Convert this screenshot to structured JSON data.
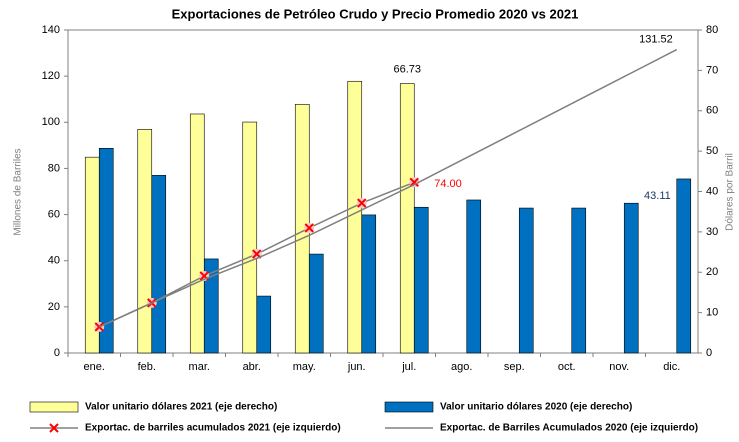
{
  "chart_data": {
    "type": "bar",
    "title": "Exportaciones de Petróleo Crudo y Precio Promedio 2020 vs 2021",
    "y_label": "Millones de Barriles",
    "y2_label": "Dólares por Barril",
    "categories": [
      "ene.",
      "feb.",
      "mar.",
      "abr.",
      "may.",
      "jun.",
      "jul.",
      "ago.",
      "sep.",
      "oct.",
      "nov.",
      "dic."
    ],
    "ylim": [
      0,
      140
    ],
    "yticks": [
      0,
      20,
      40,
      60,
      80,
      100,
      120,
      140
    ],
    "y2lim": [
      0,
      80
    ],
    "y2ticks": [
      0,
      10,
      20,
      30,
      40,
      50,
      60,
      70,
      80
    ],
    "legend": "bottom",
    "series": [
      {
        "name": "Valor unitario dólares 2021 (eje derecho)",
        "type": "bar",
        "axis": "y2",
        "color": "#ffff99",
        "values": [
          48.5,
          55.4,
          59.2,
          57.2,
          61.6,
          67.3,
          66.73,
          null,
          null,
          null,
          null,
          null
        ],
        "value_labels": [
          null,
          null,
          null,
          null,
          null,
          null,
          "66.73",
          null,
          null,
          null,
          null,
          null
        ]
      },
      {
        "name": "Valor unitario dólares 2020 (eje derecho)",
        "type": "bar",
        "axis": "y2",
        "color": "#0070c0",
        "values": [
          50.7,
          44.0,
          23.3,
          14.1,
          24.5,
          34.2,
          36.1,
          37.9,
          35.9,
          35.9,
          37.1,
          43.11
        ],
        "value_labels": [
          null,
          null,
          null,
          null,
          null,
          null,
          null,
          null,
          null,
          null,
          null,
          "43.11"
        ]
      },
      {
        "name": "Exportac. de barriles acumulados 2021 (eje izquierdo)",
        "type": "line",
        "marker": "x",
        "color": "#808080",
        "marker_color": "#ff0000",
        "values": [
          11.3,
          21.7,
          33.4,
          42.9,
          54.2,
          65.0,
          74.0,
          null,
          null,
          null,
          null,
          null
        ],
        "value_labels": [
          null,
          null,
          null,
          null,
          null,
          null,
          "74.00",
          null,
          null,
          null,
          null,
          null
        ]
      },
      {
        "name": "Exportac. de Barriles Acumulados 2020 (eje izquierdo)",
        "type": "line",
        "color": "#808080",
        "values": [
          11.3,
          21.7,
          32.0,
          41.0,
          51.0,
          62.0,
          73.0,
          84.7,
          96.4,
          108.1,
          119.8,
          131.52
        ],
        "value_labels": [
          null,
          null,
          null,
          null,
          null,
          null,
          null,
          null,
          null,
          null,
          null,
          "131.52"
        ]
      }
    ]
  }
}
